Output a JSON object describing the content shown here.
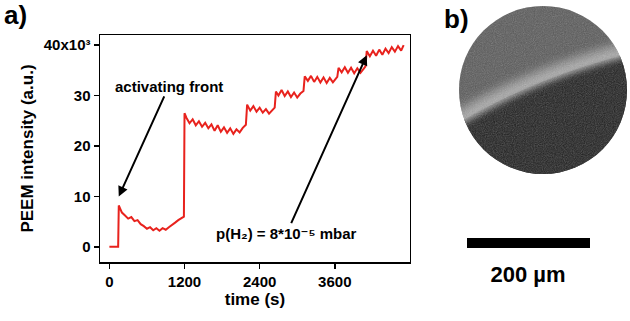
{
  "chart_data": {
    "type": "line",
    "panel_label": "a)",
    "x_label": "time (s)",
    "y_label": "PEEM intensity (a.u.)",
    "color": "#e8221d",
    "grid": false,
    "xlim": [
      -150,
      4800
    ],
    "ylim": [
      -3000,
      42000
    ],
    "xticks": [
      0,
      1200,
      2400,
      3600
    ],
    "yticks": [
      0,
      {
        "value": 10000,
        "label": "10"
      },
      {
        "value": 20000,
        "label": "20"
      },
      {
        "value": 30000,
        "label": "30"
      },
      {
        "value": 40000,
        "label": "40x10³"
      }
    ],
    "annotations": [
      {
        "text": "activating front",
        "x": 150,
        "y": 10000
      },
      {
        "text": "p(H₂) = 8*10⁻⁵ mbar",
        "x": 4110,
        "y": 38000
      }
    ],
    "x": [
      0,
      50,
      100,
      140,
      150,
      170,
      200,
      250,
      300,
      350,
      400,
      450,
      500,
      550,
      600,
      650,
      700,
      750,
      800,
      850,
      900,
      950,
      1000,
      1050,
      1100,
      1150,
      1190,
      1200,
      1230,
      1280,
      1330,
      1380,
      1430,
      1480,
      1530,
      1580,
      1630,
      1680,
      1730,
      1780,
      1830,
      1880,
      1930,
      1980,
      2030,
      2080,
      2130,
      2180,
      2200,
      2250,
      2300,
      2350,
      2400,
      2450,
      2500,
      2550,
      2600,
      2640,
      2660,
      2700,
      2750,
      2800,
      2850,
      2900,
      2950,
      3000,
      3050,
      3100,
      3120,
      3170,
      3220,
      3270,
      3320,
      3370,
      3420,
      3470,
      3520,
      3570,
      3620,
      3640,
      3660,
      3710,
      3760,
      3810,
      3860,
      3910,
      3960,
      4010,
      4060,
      4090,
      4110,
      4160,
      4210,
      4260,
      4310,
      4360,
      4410,
      4460,
      4510,
      4560,
      4610,
      4660,
      4700
    ],
    "values": [
      0,
      0,
      0,
      0,
      8200,
      7600,
      6800,
      6200,
      5600,
      5900,
      5100,
      5300,
      4500,
      4100,
      3600,
      3900,
      3300,
      3700,
      3200,
      3700,
      3400,
      3900,
      4300,
      4800,
      5300,
      5700,
      6000,
      26500,
      25600,
      24500,
      25300,
      24100,
      24900,
      23800,
      24600,
      23500,
      24300,
      23000,
      24100,
      22800,
      23700,
      22600,
      23500,
      22400,
      23300,
      22700,
      23600,
      24200,
      28200,
      27000,
      27900,
      26800,
      27600,
      26600,
      27300,
      26400,
      27100,
      27600,
      30800,
      30000,
      31100,
      29900,
      30800,
      29700,
      30600,
      29600,
      30400,
      30900,
      33800,
      32900,
      33900,
      32700,
      33700,
      32600,
      33600,
      32500,
      33500,
      32600,
      33400,
      33700,
      35500,
      34600,
      35600,
      34500,
      35500,
      34400,
      35400,
      34500,
      35300,
      35800,
      38800,
      37800,
      38900,
      37900,
      39100,
      38100,
      39300,
      38400,
      39600,
      38700,
      39800,
      38900,
      40000
    ]
  },
  "image_panel": {
    "panel_label": "b)",
    "scale_bar_label": "200 µm"
  }
}
